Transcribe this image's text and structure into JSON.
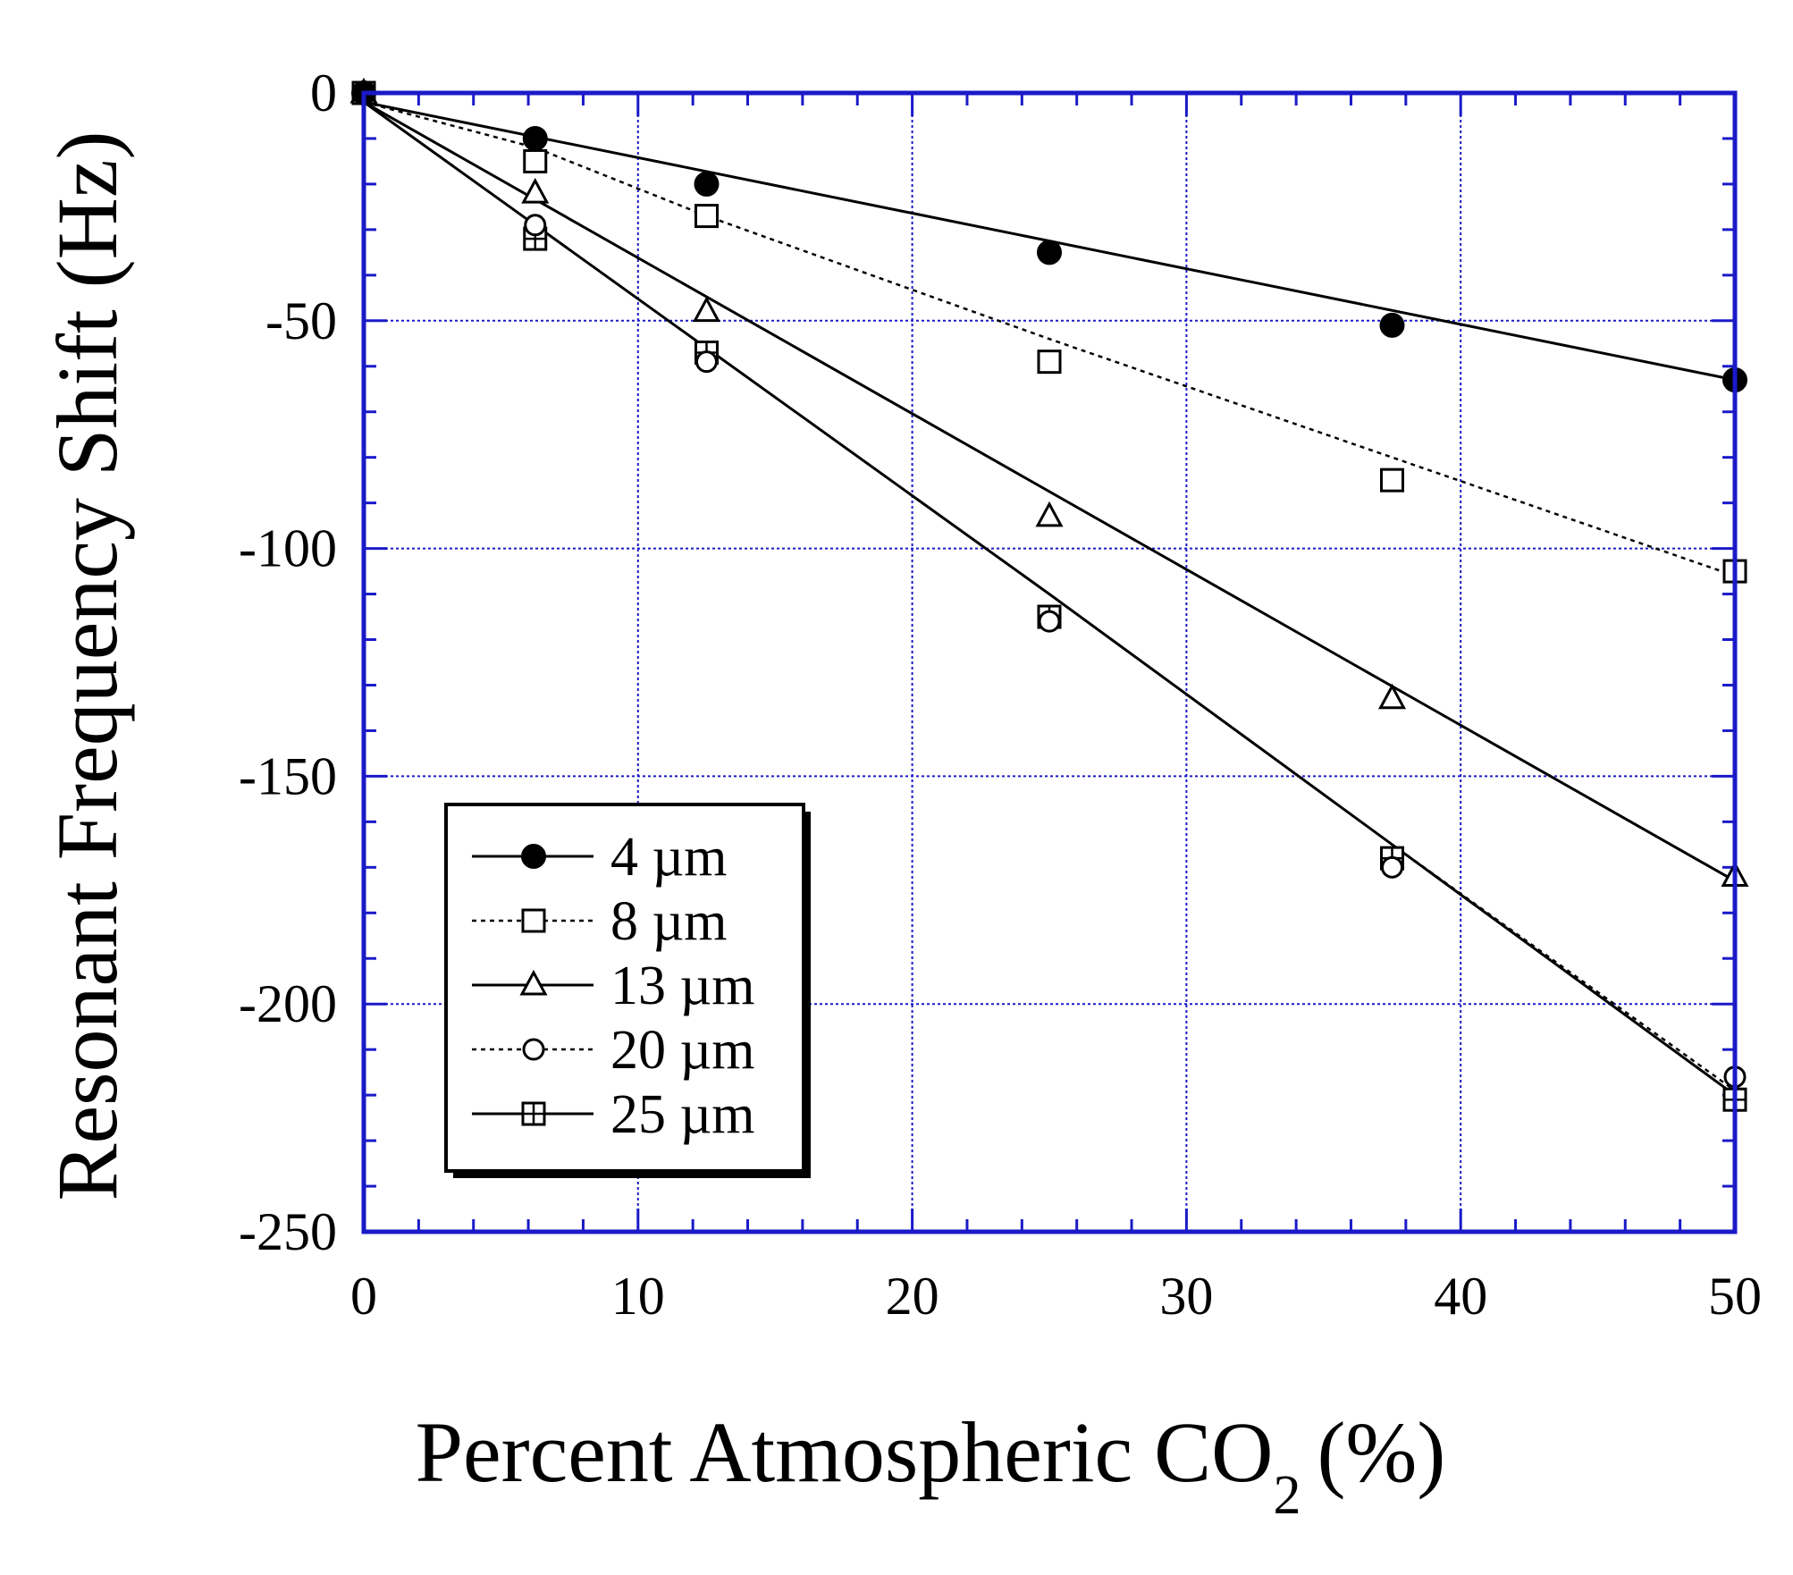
{
  "chart_data": {
    "type": "line",
    "title": "",
    "xlabel": "Percent Atmospheric CO",
    "xlabel_subscript": "2",
    "xlabel_suffix": "(%)",
    "ylabel": "Resonant Frequency Shift (Hz)",
    "xlim": [
      0,
      50
    ],
    "ylim": [
      -250,
      0
    ],
    "x_ticks": [
      0,
      10,
      20,
      30,
      40,
      50
    ],
    "y_ticks": [
      0,
      -50,
      -100,
      -150,
      -200,
      -250
    ],
    "x_minor_step": 2,
    "y_minor_step": 10,
    "grid": true,
    "grid_color": "#1a1ac8",
    "axis_color": "#1a1ac8",
    "legend_position": "lower-left",
    "series": [
      {
        "name": "4 µm",
        "marker": "filled-circle",
        "line": "solid",
        "x": [
          0,
          6.25,
          12.5,
          25,
          37.5,
          50
        ],
        "values": [
          0,
          -10,
          -20,
          -35,
          -51,
          -63
        ],
        "fit": [
          [
            0,
            -2
          ],
          [
            50,
            -63
          ]
        ]
      },
      {
        "name": "8 µm",
        "marker": "open-square",
        "line": "dotted",
        "x": [
          0,
          6.25,
          12.5,
          25,
          37.5,
          50
        ],
        "values": [
          0,
          -15,
          -27,
          -59,
          -85,
          -105
        ],
        "fit": [
          [
            0,
            -2
          ],
          [
            6.25,
            -12
          ],
          [
            12.5,
            -27
          ],
          [
            25,
            -54
          ],
          [
            37.5,
            -80
          ],
          [
            50,
            -106
          ]
        ]
      },
      {
        "name": "13 µm",
        "marker": "open-triangle",
        "line": "solid",
        "x": [
          0,
          6.25,
          12.5,
          25,
          37.5,
          50
        ],
        "values": [
          0,
          -22,
          -48,
          -93,
          -133,
          -172
        ],
        "fit": [
          [
            0,
            -2
          ],
          [
            50,
            -173
          ]
        ]
      },
      {
        "name": "20 µm",
        "marker": "open-circle",
        "line": "dotted",
        "x": [
          0,
          6.25,
          12.5,
          25,
          37.5,
          50
        ],
        "values": [
          0,
          -29,
          -59,
          -116,
          -170,
          -216
        ],
        "fit": [
          [
            0,
            -2
          ],
          [
            6.25,
            -29
          ],
          [
            12.5,
            -56
          ],
          [
            25,
            -110
          ],
          [
            37.5,
            -165
          ],
          [
            50,
            -219
          ]
        ]
      },
      {
        "name": "25 µm",
        "marker": "crossed-square",
        "line": "solid",
        "x": [
          0,
          6.25,
          12.5,
          25,
          37.5,
          50
        ],
        "values": [
          0,
          -32,
          -57,
          -115,
          -168,
          -221
        ],
        "fit": [
          [
            0,
            -2
          ],
          [
            6.25,
            -29
          ],
          [
            12.5,
            -56
          ],
          [
            25,
            -110
          ],
          [
            37.5,
            -165
          ],
          [
            50,
            -220
          ]
        ]
      }
    ]
  }
}
